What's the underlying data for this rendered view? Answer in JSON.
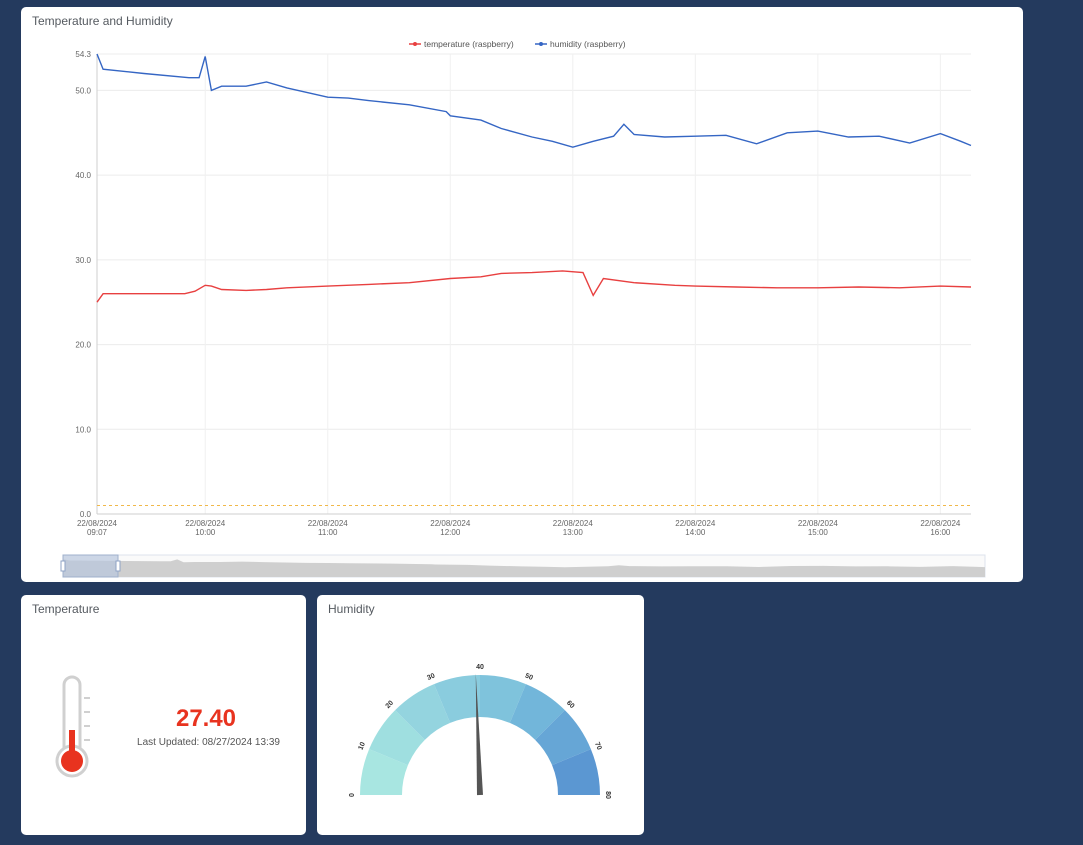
{
  "chart_panel": {
    "title": "Temperature and Humidity"
  },
  "temperature_panel": {
    "title": "Temperature",
    "value": "27.40",
    "last_updated": "Last Updated: 08/27/2024 13:39"
  },
  "humidity_panel": {
    "title": "Humidity",
    "gauge": {
      "min": 0,
      "max": 80,
      "value": 40,
      "tick_labels": [
        "0",
        "10",
        "20",
        "30",
        "40",
        "50",
        "60",
        "70",
        "80"
      ],
      "colors": [
        "#a8e6e1",
        "#9fdfe0",
        "#94d4df",
        "#8accde",
        "#7fc3dc",
        "#72b6da",
        "#66a6d6",
        "#5b97d2"
      ]
    }
  },
  "chart_data": {
    "type": "line",
    "title": "",
    "ylabel": "",
    "ylim": [
      0,
      54.3
    ],
    "yticks": [
      "0.0",
      "10.0",
      "20.0",
      "30.0",
      "40.0",
      "50.0",
      "54.3"
    ],
    "x_range": [
      "22/08/2024 09:07",
      "22/08/2024 16:15"
    ],
    "xticks": [
      {
        "date": "22/08/2024",
        "time": "09:07"
      },
      {
        "date": "22/08/2024",
        "time": "10:00"
      },
      {
        "date": "22/08/2024",
        "time": "11:00"
      },
      {
        "date": "22/08/2024",
        "time": "12:00"
      },
      {
        "date": "22/08/2024",
        "time": "13:00"
      },
      {
        "date": "22/08/2024",
        "time": "14:00"
      },
      {
        "date": "22/08/2024",
        "time": "15:00"
      },
      {
        "date": "22/08/2024",
        "time": "16:00"
      }
    ],
    "legend_position": "top-center",
    "grid": true,
    "threshold_line": {
      "value": 1,
      "color": "#f0b84a",
      "style": "dashed"
    },
    "series": [
      {
        "name": "temperature (raspberry)",
        "color": "#e84040",
        "points": [
          [
            "09:07",
            25
          ],
          [
            "09:10",
            26
          ],
          [
            "09:30",
            26
          ],
          [
            "09:50",
            26
          ],
          [
            "09:55",
            26.3
          ],
          [
            "10:00",
            27
          ],
          [
            "10:03",
            26.9
          ],
          [
            "10:08",
            26.5
          ],
          [
            "10:20",
            26.4
          ],
          [
            "10:30",
            26.5
          ],
          [
            "10:40",
            26.7
          ],
          [
            "11:00",
            26.9
          ],
          [
            "11:20",
            27.1
          ],
          [
            "11:40",
            27.3
          ],
          [
            "12:00",
            27.8
          ],
          [
            "12:15",
            28
          ],
          [
            "12:25",
            28.4
          ],
          [
            "12:40",
            28.5
          ],
          [
            "12:55",
            28.7
          ],
          [
            "13:05",
            28.5
          ],
          [
            "13:10",
            25.8
          ],
          [
            "13:15",
            27.8
          ],
          [
            "13:30",
            27.3
          ],
          [
            "13:50",
            27
          ],
          [
            "14:00",
            26.9
          ],
          [
            "14:20",
            26.8
          ],
          [
            "14:40",
            26.7
          ],
          [
            "15:00",
            26.7
          ],
          [
            "15:20",
            26.8
          ],
          [
            "15:40",
            26.7
          ],
          [
            "16:00",
            26.9
          ],
          [
            "16:15",
            26.8
          ]
        ]
      },
      {
        "name": "humidity (raspberry)",
        "color": "#3566c4",
        "points": [
          [
            "09:07",
            54.3
          ],
          [
            "09:10",
            52.5
          ],
          [
            "09:30",
            52
          ],
          [
            "09:52",
            51.5
          ],
          [
            "09:57",
            51.5
          ],
          [
            "10:00",
            54
          ],
          [
            "10:03",
            50
          ],
          [
            "10:08",
            50.5
          ],
          [
            "10:20",
            50.5
          ],
          [
            "10:30",
            51
          ],
          [
            "10:40",
            50.3
          ],
          [
            "11:00",
            49.2
          ],
          [
            "11:10",
            49.1
          ],
          [
            "11:20",
            48.8
          ],
          [
            "11:40",
            48.3
          ],
          [
            "11:58",
            47.5
          ],
          [
            "12:00",
            47
          ],
          [
            "12:15",
            46.5
          ],
          [
            "12:25",
            45.5
          ],
          [
            "12:40",
            44.5
          ],
          [
            "12:50",
            44
          ],
          [
            "13:00",
            43.3
          ],
          [
            "13:10",
            44
          ],
          [
            "13:20",
            44.6
          ],
          [
            "13:25",
            46
          ],
          [
            "13:30",
            44.8
          ],
          [
            "13:45",
            44.5
          ],
          [
            "14:00",
            44.6
          ],
          [
            "14:15",
            44.7
          ],
          [
            "14:30",
            43.7
          ],
          [
            "14:45",
            45
          ],
          [
            "15:00",
            45.2
          ],
          [
            "15:15",
            44.5
          ],
          [
            "15:30",
            44.6
          ],
          [
            "15:45",
            43.8
          ],
          [
            "16:00",
            44.9
          ],
          [
            "16:10",
            44
          ],
          [
            "16:15",
            43.5
          ]
        ]
      }
    ]
  }
}
